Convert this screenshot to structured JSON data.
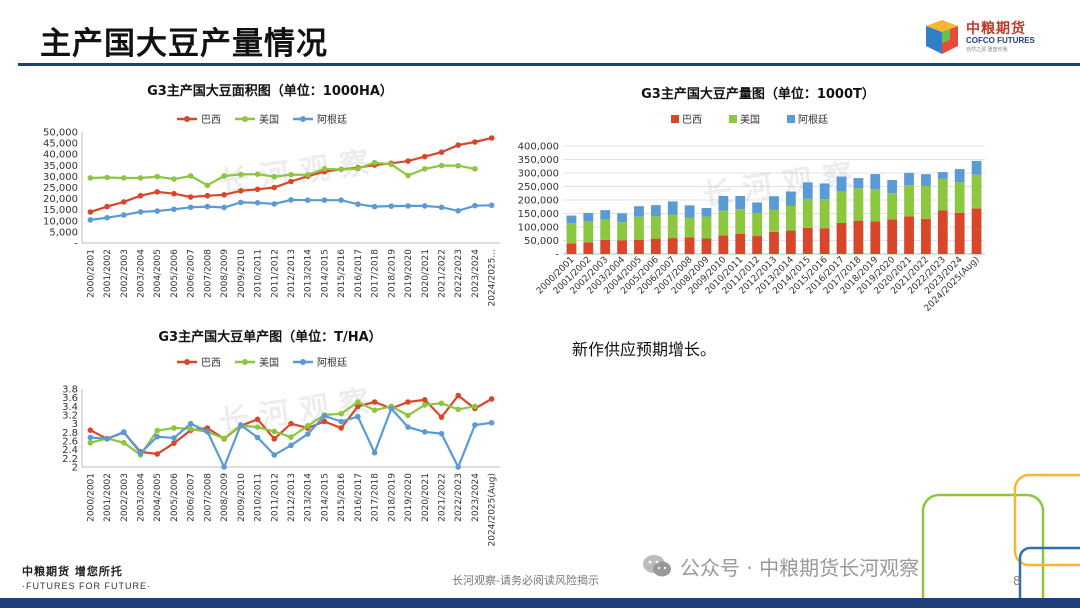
{
  "page": {
    "title": "主产国大豆产量情况",
    "note": "新作供应预期增长。",
    "footer_left_cn": "中粮期货 增您所托",
    "footer_left_en": "·FUTURES FOR FUTURE·",
    "footer_center": "长河观察-请务必阅读风险揭示",
    "wechat_text": "公众号 · 中粮期货长河观察",
    "page_number": "8",
    "logo_cn": "中粮期货",
    "logo_en": "COFCO FUTURES",
    "logo_slogan": "自然之源 重塑你我",
    "watermark": "长 河 观 察"
  },
  "colors": {
    "brazil": "#d9472b",
    "usa": "#8dc63f",
    "argentina": "#5b9bd5",
    "title_rule": "#1f3f7a"
  },
  "chart_data": [
    {
      "id": "area",
      "type": "line",
      "title": "G3主产国大豆面积图（单位：1000HA）",
      "categories": [
        "2000/2001",
        "2001/2002",
        "2002/2003",
        "2003/2004",
        "2004/2005",
        "2005/2006",
        "2006/2007",
        "2007/2008",
        "2008/2009",
        "2009/2010",
        "2010/2011",
        "2011/2012",
        "2012/2013",
        "2013/2014",
        "2014/2015",
        "2015/2016",
        "2016/2017",
        "2017/2018",
        "2018/2019",
        "2019/2020",
        "2020/2021",
        "2021/2022",
        "2022/2023",
        "2023/2024",
        "2024/2025..."
      ],
      "yticks": [
        "-",
        "5,000",
        "10,000",
        "15,000",
        "20,000",
        "25,000",
        "30,000",
        "35,000",
        "40,000",
        "45,000",
        "50,000"
      ],
      "ylim": [
        0,
        50000
      ],
      "series": [
        {
          "name": "巴西",
          "color": "#d9472b",
          "values": [
            14000,
            16400,
            18500,
            21300,
            23000,
            22200,
            20700,
            21300,
            21700,
            23500,
            24200,
            25000,
            27700,
            30100,
            32100,
            33200,
            33900,
            35100,
            35900,
            36900,
            38900,
            40900,
            44100,
            45500,
            47300
          ]
        },
        {
          "name": "美国",
          "color": "#8dc63f",
          "values": [
            29300,
            29500,
            29300,
            29300,
            29900,
            28800,
            30200,
            26000,
            30200,
            30900,
            31000,
            29900,
            30800,
            30700,
            33400,
            33100,
            33500,
            36200,
            35400,
            30400,
            33400,
            34900,
            34800,
            33400,
            null
          ]
        },
        {
          "name": "阿根廷",
          "color": "#5b9bd5",
          "values": [
            10400,
            11400,
            12600,
            14000,
            14400,
            15200,
            16100,
            16400,
            16000,
            18300,
            18100,
            17600,
            19400,
            19300,
            19300,
            19300,
            17500,
            16400,
            16600,
            16700,
            16700,
            16100,
            14500,
            16800,
            17000
          ]
        }
      ]
    },
    {
      "id": "production",
      "type": "bar",
      "stacked": true,
      "title": "G3主产国大豆产量图（单位：1000T）",
      "categories": [
        "2000/2001",
        "2001/2002",
        "2002/2003",
        "2003/2004",
        "2004/2005",
        "2005/2006",
        "2006/2007",
        "2007/2008",
        "2008/2009",
        "2009/2010",
        "2010/2011",
        "2011/2012",
        "2012/2013",
        "2013/2014",
        "2014/2015",
        "2015/2016",
        "2016/2017",
        "2017/2018",
        "2018/2019",
        "2019/2020",
        "2020/2021",
        "2021/2022",
        "2022/2023",
        "2023/2024",
        "2024/2025(Aug)"
      ],
      "yticks": [
        "-",
        "50,000",
        "100,000",
        "150,000",
        "200,000",
        "250,000",
        "300,000",
        "350,000",
        "400,000"
      ],
      "ylim": [
        0,
        400000
      ],
      "series": [
        {
          "name": "巴西",
          "color": "#d9472b",
          "values": [
            39500,
            43500,
            52000,
            51000,
            53000,
            57000,
            59000,
            61000,
            57800,
            69000,
            75300,
            66500,
            82000,
            86700,
            97100,
            95700,
            114900,
            123400,
            120300,
            128500,
            139500,
            130500,
            162000,
            153000,
            169000
          ]
        },
        {
          "name": "美国",
          "color": "#8dc63f",
          "values": [
            75100,
            78700,
            75000,
            66800,
            85000,
            83500,
            87000,
            72900,
            80700,
            91400,
            90600,
            84300,
            82800,
            91400,
            106900,
            106900,
            116900,
            120100,
            120500,
            96700,
            114800,
            121500,
            116400,
            113300,
            124900
          ]
        },
        {
          "name": "阿根廷",
          "color": "#5b9bd5",
          "values": [
            27800,
            30000,
            35500,
            33000,
            39000,
            40500,
            48800,
            46200,
            32000,
            54500,
            49000,
            40100,
            49300,
            53400,
            61400,
            58800,
            55000,
            37800,
            55300,
            48800,
            46200,
            43900,
            25000,
            48200,
            51000
          ]
        }
      ]
    },
    {
      "id": "yield",
      "type": "line",
      "title": "G3主产国大豆单产图（单位：T/HA）",
      "categories": [
        "2000/2001",
        "2001/2002",
        "2002/2003",
        "2003/2004",
        "2004/2005",
        "2005/2006",
        "2006/2007",
        "2007/2008",
        "2008/2009",
        "2009/2010",
        "2010/2011",
        "2011/2012",
        "2012/2013",
        "2013/2014",
        "2014/2015",
        "2015/2016",
        "2016/2017",
        "2017/2018",
        "2018/2019",
        "2019/2020",
        "2020/2021",
        "2021/2022",
        "2022/2023",
        "2023/2024",
        "2024/2025(Aug)"
      ],
      "yticks": [
        "2",
        "2.2",
        "2.4",
        "2.6",
        "2.8",
        "3",
        "3.2",
        "3.4",
        "3.6",
        "3.8"
      ],
      "ylim": [
        2,
        3.8
      ],
      "series": [
        {
          "name": "巴西",
          "color": "#d9472b",
          "values": [
            2.85,
            2.65,
            2.8,
            2.35,
            2.3,
            2.55,
            2.85,
            2.9,
            2.65,
            2.95,
            3.1,
            2.65,
            3.0,
            2.9,
            3.05,
            2.9,
            3.4,
            3.5,
            3.35,
            3.5,
            3.55,
            3.15,
            3.65,
            3.35,
            3.57
          ]
        },
        {
          "name": "美国",
          "color": "#8dc63f",
          "values": [
            2.56,
            2.66,
            2.56,
            2.28,
            2.84,
            2.9,
            2.88,
            2.81,
            2.66,
            2.96,
            2.92,
            2.82,
            2.69,
            2.95,
            3.2,
            3.23,
            3.5,
            3.31,
            3.4,
            3.19,
            3.43,
            3.47,
            3.33,
            3.4,
            null
          ]
        },
        {
          "name": "阿根廷",
          "color": "#5b9bd5",
          "values": [
            2.68,
            2.65,
            2.81,
            2.32,
            2.7,
            2.67,
            3.0,
            2.82,
            2.0,
            2.97,
            2.68,
            2.28,
            2.5,
            2.76,
            3.18,
            3.05,
            3.16,
            2.33,
            3.35,
            2.92,
            2.81,
            2.77,
            2.0,
            2.97,
            3.02
          ]
        }
      ]
    }
  ]
}
